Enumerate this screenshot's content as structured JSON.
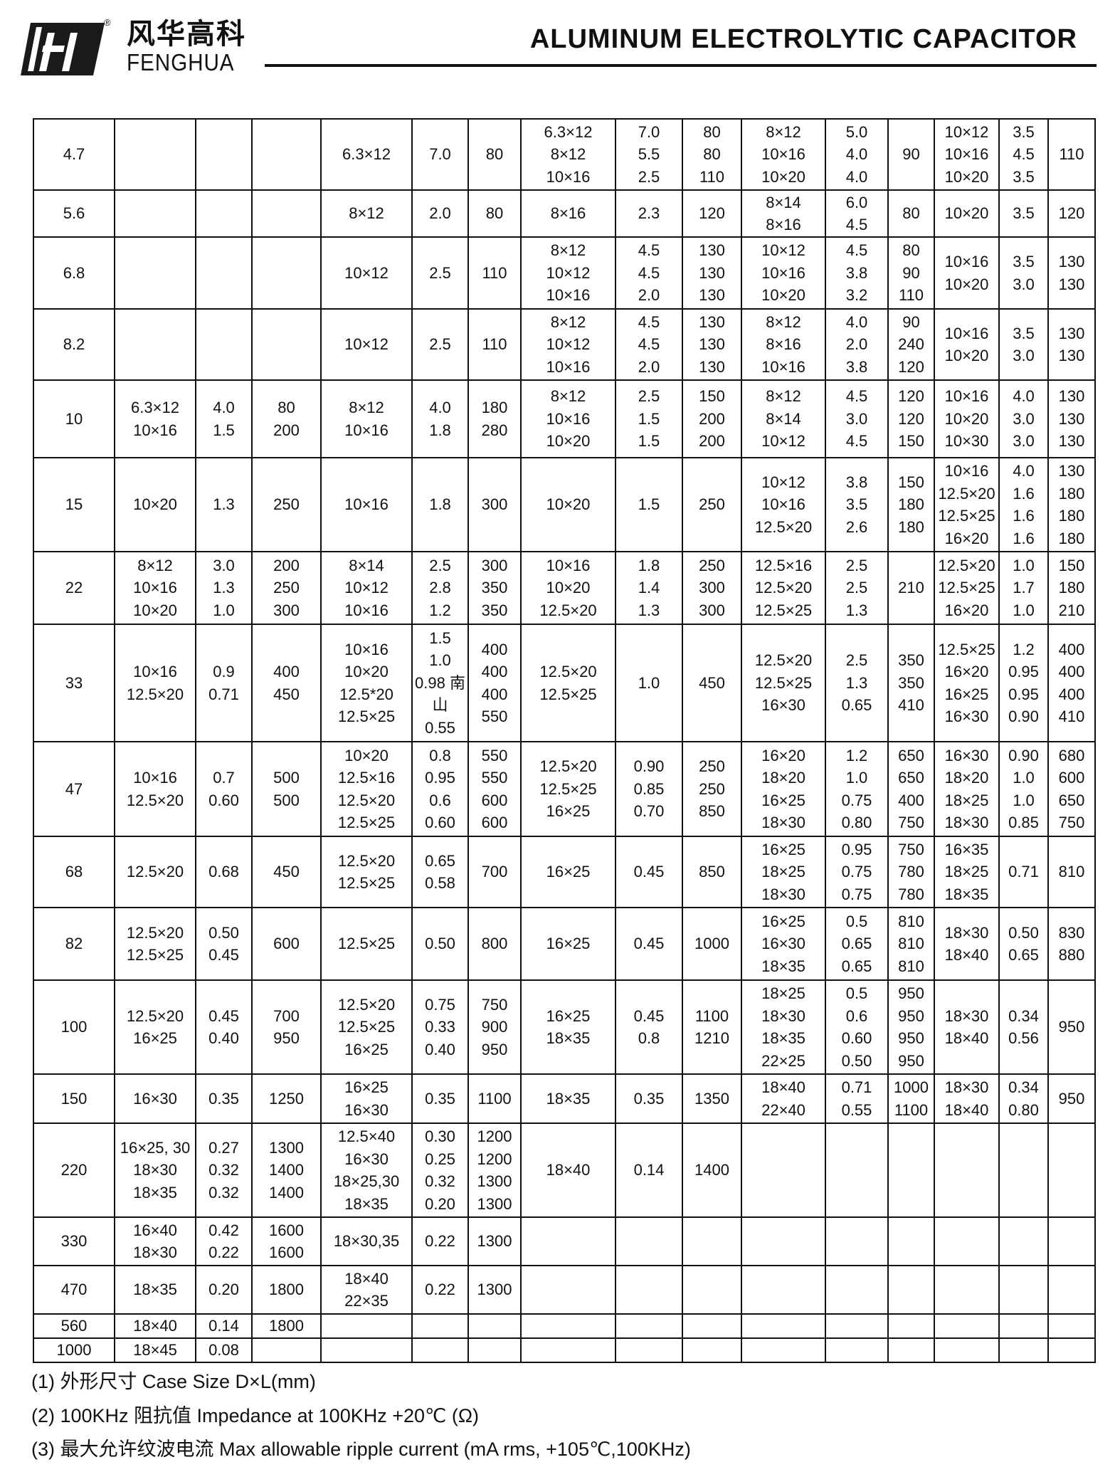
{
  "header": {
    "brand_cn": "风华高科",
    "brand_en": "FENGHUA",
    "registered_mark": "®",
    "title": "ALUMINUM ELECTROLYTIC CAPACITOR"
  },
  "table": {
    "rows": [
      [
        "4.7",
        "",
        "",
        "",
        "6.3×12",
        "7.0",
        "80",
        "6.3×12\n8×12\n10×16",
        "7.0\n5.5\n2.5",
        "80\n80\n110",
        "8×12\n10×16\n10×20",
        "5.0\n4.0\n4.0",
        "90",
        "10×12\n10×16\n10×20",
        "3.5\n4.5\n3.5",
        "110"
      ],
      [
        "5.6",
        "",
        "",
        "",
        "8×12",
        "2.0",
        "80",
        "8×16",
        "2.3",
        "120",
        "8×14\n8×16",
        "6.0\n4.5",
        "80",
        "10×20",
        "3.5",
        "120"
      ],
      [
        "6.8",
        "",
        "",
        "",
        "10×12",
        "2.5",
        "110",
        "8×12\n10×12\n10×16",
        "4.5\n4.5\n2.0",
        "130\n130\n130",
        "10×12\n10×16\n10×20",
        "4.5\n3.8\n3.2",
        "80\n90\n110",
        "10×16\n10×20",
        "3.5\n3.0",
        "130\n130"
      ],
      [
        "8.2",
        "",
        "",
        "",
        "10×12",
        "2.5",
        "110",
        "8×12\n10×12\n10×16",
        "4.5\n4.5\n2.0",
        "130\n130\n130",
        "8×12\n8×16\n10×16",
        "4.0\n2.0\n3.8",
        "90\n240\n120",
        "10×16\n10×20",
        "3.5\n3.0",
        "130\n130"
      ],
      [
        "10",
        "6.3×12\n10×16",
        "4.0\n1.5",
        "80\n200",
        "8×12\n10×16",
        "4.0\n1.8",
        "180\n280",
        "8×12\n10×16\n10×20",
        "2.5\n1.5\n1.5",
        "150\n200\n200",
        "8×12\n8×14\n10×12",
        "4.5\n3.0\n4.5",
        "120\n120\n150",
        "10×16\n10×20\n10×30",
        "4.0\n3.0\n3.0",
        "130\n130\n130"
      ],
      [
        "15",
        "10×20",
        "1.3",
        "250",
        "10×16",
        "1.8",
        "300",
        "10×20",
        "1.5",
        "250",
        "10×12\n10×16\n12.5×20",
        "3.8\n3.5\n2.6",
        "150\n180\n180",
        "10×16\n12.5×20\n12.5×25\n16×20",
        "4.0\n1.6\n1.6\n1.6",
        "130\n180\n180\n180"
      ],
      [
        "22",
        "8×12\n10×16\n10×20",
        "3.0\n1.3\n1.0",
        "200\n250\n300",
        "8×14\n10×12\n10×16",
        "2.5\n2.8\n1.2",
        "300\n350\n350",
        "10×16\n10×20\n12.5×20",
        "1.8\n1.4\n1.3",
        "250\n300\n300",
        "12.5×16\n12.5×20\n12.5×25",
        "2.5\n2.5\n1.3",
        "210",
        "12.5×20\n12.5×25\n16×20",
        "1.0\n1.7\n1.0",
        "150\n180\n210"
      ],
      [
        "33",
        "10×16\n12.5×20",
        "0.9\n0.71",
        "400\n450",
        "10×16\n10×20\n12.5*20\n12.5×25",
        "1.5\n1.0\n0.98 南\n山\n0.55",
        "400\n400\n400\n550",
        "12.5×20\n12.5×25",
        "1.0",
        "450",
        "12.5×20\n12.5×25\n16×30",
        "2.5\n1.3\n0.65",
        "350\n350\n410",
        "12.5×25\n16×20\n16×25\n16×30",
        "1.2\n0.95\n0.95\n0.90",
        "400\n400\n400\n410"
      ],
      [
        "47",
        "10×16\n12.5×20",
        "0.7\n0.60",
        "500\n500",
        "10×20\n12.5×16\n12.5×20\n12.5×25",
        "0.8\n0.95\n0.6\n0.60",
        "550\n550\n600\n600",
        "12.5×20\n12.5×25\n16×25",
        "0.90\n0.85\n0.70",
        "250\n250\n850",
        "16×20\n18×20\n16×25\n18×30",
        "1.2\n1.0\n0.75\n0.80",
        "650\n650\n400\n750",
        "16×30\n18×20\n18×25\n18×30",
        "0.90\n1.0\n1.0\n0.85",
        "680\n600\n650\n750"
      ],
      [
        "68",
        "12.5×20",
        "0.68",
        "450",
        "12.5×20\n12.5×25",
        "0.65\n0.58",
        "700",
        "16×25",
        "0.45",
        "850",
        "16×25\n18×25\n18×30",
        "0.95\n0.75\n0.75",
        "750\n780\n780",
        "16×35\n18×25\n18×35",
        "0.71",
        "810"
      ],
      [
        "82",
        "12.5×20\n12.5×25",
        "0.50\n0.45",
        "600",
        "12.5×25",
        "0.50",
        "800",
        "16×25",
        "0.45",
        "1000",
        "16×25\n16×30\n18×35",
        "0.5\n0.65\n0.65",
        "810\n810\n810",
        "18×30\n18×40",
        "0.50\n0.65",
        "830\n880"
      ],
      [
        "100",
        "12.5×20\n16×25",
        "0.45\n0.40",
        "700\n950",
        "12.5×20\n12.5×25\n16×25",
        "0.75\n0.33\n0.40",
        "750\n900\n950",
        "16×25\n18×35",
        "0.45\n0.8",
        "1100\n1210",
        "18×25\n18×30\n18×35\n22×25",
        "0.5\n0.6\n0.60\n0.50",
        "950\n950\n950\n950",
        "18×30\n18×40",
        "0.34\n0.56",
        "950"
      ],
      [
        "150",
        "16×30",
        "0.35",
        "1250",
        "16×25\n16×30",
        "0.35",
        "1100",
        "18×35",
        "0.35",
        "1350",
        "18×40\n22×40",
        "0.71\n0.55",
        "1000\n1100",
        "18×30\n18×40",
        "0.34\n0.80",
        "950"
      ],
      [
        "220",
        "16×25, 30\n18×30\n18×35",
        "0.27\n0.32\n0.32",
        "1300\n1400\n1400",
        "12.5×40\n16×30\n18×25,30\n18×35",
        "0.30\n0.25\n0.32\n0.20",
        "1200\n1200\n1300\n1300",
        "18×40",
        "0.14",
        "1400",
        "",
        "",
        "",
        "",
        "",
        ""
      ],
      [
        "330",
        "16×40\n18×30",
        "0.42\n0.22",
        "1600\n1600",
        "18×30,35",
        "0.22",
        "1300",
        "",
        "",
        "",
        "",
        "",
        "",
        "",
        "",
        ""
      ],
      [
        "470",
        "18×35",
        "0.20",
        "1800",
        "18×40\n22×35",
        "0.22",
        "1300",
        "",
        "",
        "",
        "",
        "",
        "",
        "",
        "",
        ""
      ],
      [
        "560",
        "18×40",
        "0.14",
        "1800",
        "",
        "",
        "",
        "",
        "",
        "",
        "",
        "",
        "",
        "",
        "",
        ""
      ],
      [
        "1000",
        "18×45",
        "0.08",
        "",
        "",
        "",
        "",
        "",
        "",
        "",
        "",
        "",
        "",
        "",
        "",
        ""
      ]
    ]
  },
  "notes": [
    "(1)  外形尺寸    Case Size D×L(mm)",
    "(2) 100KHz 阻抗值 Impedance at 100KHz +20℃  (Ω)",
    "(3)  最大允许纹波电流  Max allowable ripple current (mA rms, +105℃,100KHz)"
  ]
}
